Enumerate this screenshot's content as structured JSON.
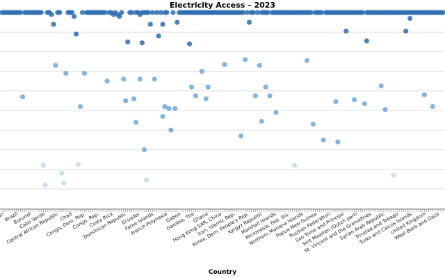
{
  "chart_data": {
    "type": "scatter",
    "title": "Electricity Access – 2023",
    "xlabel": "Country",
    "ylabel": "",
    "grid": true,
    "y_axis_labels_visible": false,
    "x_tick_labels_partially_legible": true,
    "legible_x_ticks": [
      "Bhutan",
      "Brazil",
      "Burundi",
      "Cabo Verde",
      "Central African Republic",
      "Chad",
      "Congo, Dem. Rep.",
      "Congo, Rep.",
      "Costa Rica",
      "Dominican Republic",
      "Ecuador",
      "Faroe Islands",
      "French Polynesia",
      "Gabon",
      "Gambia, The",
      "Ghana",
      "Hong Kong SAR, China",
      "Iran, Islamic Rep.",
      "Korea, Dem. People's Rep.",
      "Kyrgyz Republic",
      "Marshall Islands",
      "Micronesia, Fed. Sts.",
      "Northern Mariana Islands",
      "Papua New Guinea",
      "Russian Federation",
      "Sao Tome and Principe",
      "Sint Maarten (Dutch part)",
      "St. Vincent and the Grenadines",
      "Syrian Arab Republic",
      "Trinidad and Tobago",
      "Turks and Caicos Islands",
      "United Kingdom",
      "West Bank and Gaza"
    ],
    "colors": {
      "high": "#2b6cb0",
      "mid": "#5b9bd5",
      "low": "#c6dbef"
    },
    "ylim": [
      0,
      100
    ],
    "points": [
      {
        "x": 1,
        "y": 100
      },
      {
        "x": 2,
        "y": 100
      },
      {
        "x": 3,
        "y": 100
      },
      {
        "x": 4,
        "y": 100
      },
      {
        "x": 5,
        "y": 100
      },
      {
        "x": 6,
        "y": 100
      },
      {
        "x": 7,
        "y": 100
      },
      {
        "x": 8,
        "y": 100
      },
      {
        "x": 9,
        "y": 100
      },
      {
        "x": 10,
        "y": 100
      },
      {
        "x": 11,
        "y": 57.0
      },
      {
        "x": 12,
        "y": 100
      },
      {
        "x": 13,
        "y": 100
      },
      {
        "x": 14,
        "y": 100
      },
      {
        "x": 15,
        "y": 100
      },
      {
        "x": 16,
        "y": 100
      },
      {
        "x": 17,
        "y": 100
      },
      {
        "x": 18,
        "y": 100
      },
      {
        "x": 19,
        "y": 100
      },
      {
        "x": 20,
        "y": 100
      },
      {
        "x": 21,
        "y": 22.0
      },
      {
        "x": 22,
        "y": 12.0
      },
      {
        "x": 23,
        "y": 100
      },
      {
        "x": 24,
        "y": 100
      },
      {
        "x": 25,
        "y": 99.0
      },
      {
        "x": 26,
        "y": 94.0
      },
      {
        "x": 27,
        "y": 73.0
      },
      {
        "x": 28,
        "y": 100
      },
      {
        "x": 29,
        "y": 100
      },
      {
        "x": 30,
        "y": 18.0
      },
      {
        "x": 31,
        "y": 13.0
      },
      {
        "x": 32,
        "y": 69.0
      },
      {
        "x": 33,
        "y": 100
      },
      {
        "x": 34,
        "y": 100
      },
      {
        "x": 35,
        "y": 100
      },
      {
        "x": 36,
        "y": 98.0
      },
      {
        "x": 37,
        "y": 89.0
      },
      {
        "x": 38,
        "y": 22.5
      },
      {
        "x": 39,
        "y": 52.0
      },
      {
        "x": 40,
        "y": 100
      },
      {
        "x": 41,
        "y": 69.0
      },
      {
        "x": 42,
        "y": 100
      },
      {
        "x": 43,
        "y": 100
      },
      {
        "x": 44,
        "y": 100
      },
      {
        "x": 45,
        "y": 100
      },
      {
        "x": 46,
        "y": 100
      },
      {
        "x": 47,
        "y": 100
      },
      {
        "x": 48,
        "y": 100
      },
      {
        "x": 49,
        "y": 100
      },
      {
        "x": 50,
        "y": 100
      },
      {
        "x": 51,
        "y": 100
      },
      {
        "x": 52,
        "y": 65.0
      },
      {
        "x": 53,
        "y": 100
      },
      {
        "x": 54,
        "y": 100
      },
      {
        "x": 55,
        "y": 99.0
      },
      {
        "x": 56,
        "y": 100
      },
      {
        "x": 57,
        "y": 99.0
      },
      {
        "x": 58,
        "y": 98.0
      },
      {
        "x": 59,
        "y": 100
      },
      {
        "x": 60,
        "y": 66.0
      },
      {
        "x": 61,
        "y": 55.0
      },
      {
        "x": 62,
        "y": 85.0
      },
      {
        "x": 63,
        "y": 100
      },
      {
        "x": 64,
        "y": 100
      },
      {
        "x": 65,
        "y": 56.0
      },
      {
        "x": 66,
        "y": 100
      },
      {
        "x": 67,
        "y": 100
      },
      {
        "x": 68,
        "y": 99.0
      },
      {
        "x": 69,
        "y": 100
      },
      {
        "x": 70,
        "y": 100
      },
      {
        "x": 71,
        "y": 100
      },
      {
        "x": 72,
        "y": 100
      },
      {
        "x": 73,
        "y": 94.0
      },
      {
        "x": 74,
        "y": 100
      },
      {
        "x": 75,
        "y": 66.0
      },
      {
        "x": 76,
        "y": 100
      },
      {
        "x": 77,
        "y": 88.0
      },
      {
        "x": 78,
        "y": 100
      },
      {
        "x": 79,
        "y": 94.0
      },
      {
        "x": 80,
        "y": 100
      },
      {
        "x": 81,
        "y": 100
      },
      {
        "x": 82,
        "y": 51.0
      },
      {
        "x": 83,
        "y": 40.0
      },
      {
        "x": 84,
        "y": 100
      },
      {
        "x": 85,
        "y": 51.0
      },
      {
        "x": 86,
        "y": 95.0
      },
      {
        "x": 87,
        "y": 100
      },
      {
        "x": 88,
        "y": 100
      },
      {
        "x": 89,
        "y": 100
      },
      {
        "x": 90,
        "y": 100
      },
      {
        "x": 91,
        "y": 100
      },
      {
        "x": 92,
        "y": 100
      },
      {
        "x": 93,
        "y": 100
      },
      {
        "x": 94,
        "y": 100
      },
      {
        "x": 95,
        "y": 100
      },
      {
        "x": 96,
        "y": 100
      },
      {
        "x": 97,
        "y": 100
      },
      {
        "x": 98,
        "y": 100
      },
      {
        "x": 99,
        "y": 100
      },
      {
        "x": 100,
        "y": 100
      },
      {
        "x": 101,
        "y": 100
      },
      {
        "x": 102,
        "y": 100
      },
      {
        "x": 103,
        "y": 100
      },
      {
        "x": 104,
        "y": 100
      },
      {
        "x": 105,
        "y": 100
      },
      {
        "x": 106,
        "y": 100
      },
      {
        "x": 107,
        "y": 100
      },
      {
        "x": 108,
        "y": 100
      },
      {
        "x": 109,
        "y": 100
      },
      {
        "x": 110,
        "y": 100
      },
      {
        "x": 111,
        "y": 100
      },
      {
        "x": 112,
        "y": 100
      },
      {
        "x": 113,
        "y": 100
      },
      {
        "x": 114,
        "y": 100
      },
      {
        "x": 115,
        "y": 100
      },
      {
        "x": 116,
        "y": 100
      },
      {
        "x": 117,
        "y": 100
      },
      {
        "x": 118,
        "y": 100
      },
      {
        "x": 119,
        "y": 76.0
      },
      {
        "x": 120,
        "y": 100
      },
      {
        "x": 121,
        "y": 95.0
      },
      {
        "x": 122,
        "y": 100
      },
      {
        "x": 123,
        "y": 100
      },
      {
        "x": 124,
        "y": 57.5
      },
      {
        "x": 125,
        "y": 100
      },
      {
        "x": 126,
        "y": 73.0
      },
      {
        "x": 127,
        "y": 100
      },
      {
        "x": 128,
        "y": 100
      },
      {
        "x": 129,
        "y": 100
      },
      {
        "x": 130,
        "y": 100
      },
      {
        "x": 131,
        "y": 57.5
      },
      {
        "x": 132,
        "y": 100
      },
      {
        "x": 133,
        "y": 100
      },
      {
        "x": 134,
        "y": 100
      },
      {
        "x": 135,
        "y": 100
      },
      {
        "x": 136,
        "y": 100
      },
      {
        "x": 137,
        "y": 100
      },
      {
        "x": 138,
        "y": 100
      },
      {
        "x": 139,
        "y": 100
      },
      {
        "x": 140,
        "y": 100
      },
      {
        "x": 141,
        "y": 100
      },
      {
        "x": 142,
        "y": 100
      },
      {
        "x": 143,
        "y": 100
      },
      {
        "x": 144,
        "y": 100
      },
      {
        "x": 145,
        "y": 100
      },
      {
        "x": 146,
        "y": 100
      },
      {
        "x": 147,
        "y": 100
      },
      {
        "x": 148,
        "y": 100
      },
      {
        "x": 149,
        "y": 100
      },
      {
        "x": 150,
        "y": 100
      },
      {
        "x": 151,
        "y": 100
      },
      {
        "x": 152,
        "y": 43.0
      },
      {
        "x": 153,
        "y": 100
      },
      {
        "x": 154,
        "y": 100
      },
      {
        "x": 155,
        "y": 100
      },
      {
        "x": 156,
        "y": 100
      },
      {
        "x": 157,
        "y": 35.0
      },
      {
        "x": 158,
        "y": 100
      },
      {
        "x": 159,
        "y": 100
      },
      {
        "x": 160,
        "y": 100
      },
      {
        "x": 161,
        "y": 100
      },
      {
        "x": 162,
        "y": 100
      },
      {
        "x": 163,
        "y": 100
      },
      {
        "x": 164,
        "y": 100
      },
      {
        "x": 165,
        "y": 100
      },
      {
        "x": 166,
        "y": 100
      },
      {
        "x": 167,
        "y": 100
      },
      {
        "x": 168,
        "y": 100
      },
      {
        "x": 169,
        "y": 100
      },
      {
        "x": 170,
        "y": 100
      },
      {
        "x": 171,
        "y": 100
      },
      {
        "x": 172,
        "y": 100
      },
      {
        "x": 173,
        "y": 100
      },
      {
        "x": 174,
        "y": 100
      },
      {
        "x": 175,
        "y": 100
      },
      {
        "x": 176,
        "y": 100
      },
      {
        "x": 177,
        "y": 53.5
      },
      {
        "x": 178,
        "y": 100
      },
      {
        "x": 179,
        "y": 100
      },
      {
        "x": 180,
        "y": 100
      },
      {
        "x": 181,
        "y": 100
      },
      {
        "x": 182,
        "y": 100
      },
      {
        "x": 183,
        "y": 100
      },
      {
        "x": 184,
        "y": 100
      },
      {
        "x": 185,
        "y": 100
      },
      {
        "x": 186,
        "y": 100
      },
      {
        "x": 187,
        "y": 100
      },
      {
        "x": 188,
        "y": 100
      },
      {
        "x": 189,
        "y": 100
      },
      {
        "x": 190,
        "y": 100
      },
      {
        "x": 191,
        "y": 100
      },
      {
        "x": 192,
        "y": 100
      },
      {
        "x": 193,
        "y": 100
      },
      {
        "x": 194,
        "y": 100
      },
      {
        "x": 195,
        "y": 100
      },
      {
        "x": 196,
        "y": 100
      },
      {
        "x": 197,
        "y": 100
      },
      {
        "x": 198,
        "y": 100
      },
      {
        "x": 199,
        "y": 100
      },
      {
        "x": 200,
        "y": 100
      },
      {
        "x": 201,
        "y": 100
      },
      {
        "x": 202,
        "y": 100
      },
      {
        "x": 203,
        "y": 100
      },
      {
        "x": 204,
        "y": 100
      },
      {
        "x": 205,
        "y": 100
      },
      {
        "x": 206,
        "y": 100
      },
      {
        "x": 207,
        "y": 100
      },
      {
        "x": 208,
        "y": 100
      },
      {
        "x": 209,
        "y": 100
      },
      {
        "x": 210,
        "y": 100
      },
      {
        "x": 211,
        "y": 100
      },
      {
        "x": 212,
        "y": 100
      },
      {
        "x": 213,
        "y": 100
      },
      {
        "x": 214,
        "y": 100
      },
      {
        "x": 215,
        "y": 100
      }
    ],
    "extra_points": [
      {
        "x": 66,
        "y": 44.0
      },
      {
        "x": 70,
        "y": 30.0
      },
      {
        "x": 71,
        "y": 14.5
      },
      {
        "x": 68,
        "y": 66.0
      },
      {
        "x": 69,
        "y": 84.5
      },
      {
        "x": 80,
        "y": 52.0
      },
      {
        "x": 79,
        "y": 47.0
      },
      {
        "x": 92,
        "y": 84.0
      },
      {
        "x": 93,
        "y": 62.0
      },
      {
        "x": 95,
        "y": 57.5
      },
      {
        "x": 98,
        "y": 70.0
      },
      {
        "x": 100,
        "y": 56.0
      },
      {
        "x": 101,
        "y": 62.0
      },
      {
        "x": 109,
        "y": 73.5
      },
      {
        "x": 117,
        "y": 37.0
      },
      {
        "x": 127,
        "y": 44.5
      },
      {
        "x": 129,
        "y": 62.0
      },
      {
        "x": 134,
        "y": 49.0
      },
      {
        "x": 143,
        "y": 22.0
      },
      {
        "x": 149,
        "y": 75.5
      },
      {
        "x": 163,
        "y": 54.5
      },
      {
        "x": 164,
        "y": 34.0
      },
      {
        "x": 168,
        "y": 90.5
      },
      {
        "x": 172,
        "y": 55.5
      },
      {
        "x": 178,
        "y": 85.5
      },
      {
        "x": 185,
        "y": 62.5
      },
      {
        "x": 187,
        "y": 50.5
      },
      {
        "x": 191,
        "y": 17.0
      },
      {
        "x": 197,
        "y": 90.5
      },
      {
        "x": 199,
        "y": 97.0
      },
      {
        "x": 206,
        "y": 58.0
      },
      {
        "x": 210,
        "y": 52.0
      }
    ]
  }
}
